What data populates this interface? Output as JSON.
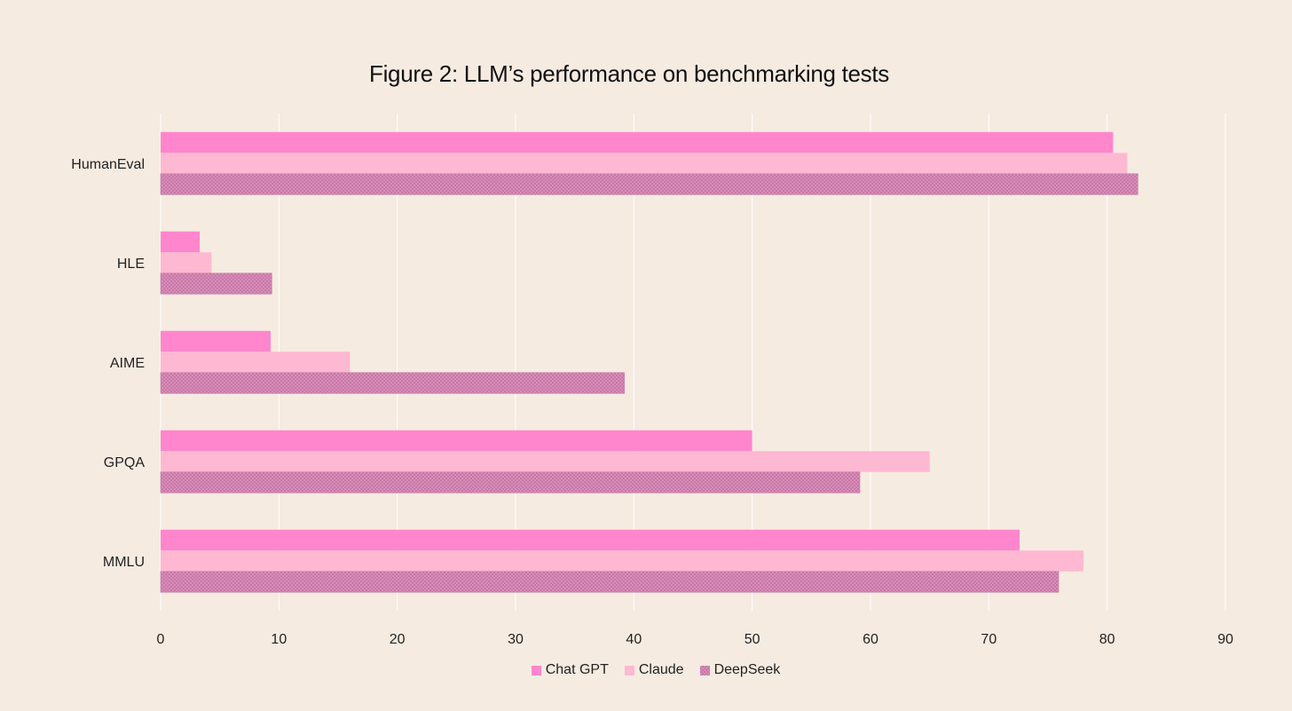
{
  "colors": {
    "background": "#f6ebe1",
    "gridline": "#ffffff"
  },
  "chart_data": {
    "type": "bar",
    "orientation": "horizontal",
    "title": "Figure 2: LLM’s performance on benchmarking tests",
    "xlabel": "",
    "ylabel": "",
    "categories": [
      "HumanEval",
      "HLE",
      "AIME",
      "GPQA",
      "MMLU"
    ],
    "series": [
      {
        "name": "Chat GPT",
        "color": "#ff85cd",
        "pattern": "solid",
        "values": [
          80.5,
          3.3,
          9.3,
          50.0,
          72.6
        ]
      },
      {
        "name": "Claude",
        "color": "#ffb8d1",
        "pattern": "solid",
        "values": [
          81.7,
          4.3,
          16.0,
          65.0,
          78.0
        ]
      },
      {
        "name": "DeepSeek",
        "color": "#d88cb8",
        "pattern": "checkered",
        "values": [
          82.6,
          9.4,
          39.2,
          59.1,
          75.9
        ]
      }
    ],
    "xlim": [
      0,
      90
    ],
    "xticks": [
      0,
      10,
      20,
      30,
      40,
      50,
      60,
      70,
      80,
      90
    ],
    "grid": true,
    "legend_position": "bottom"
  }
}
